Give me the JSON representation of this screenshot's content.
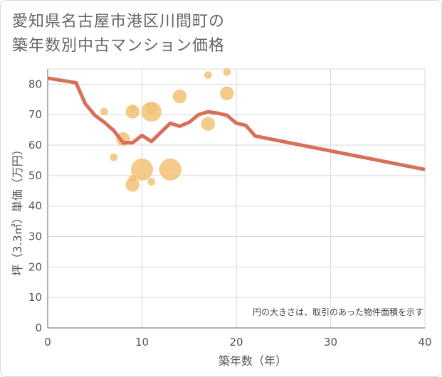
{
  "chart_data": {
    "type": "scatter",
    "title_lines": [
      "愛知県名古屋市港区川間町の",
      "築年数別中古マンション価格"
    ],
    "xlabel": "築年数（年）",
    "ylabel": "坪（3.3㎡）単価（万円）",
    "xlim": [
      0,
      40
    ],
    "ylim": [
      0,
      85
    ],
    "xticks": [
      0,
      10,
      20,
      30,
      40
    ],
    "yticks": [
      0,
      10,
      20,
      30,
      40,
      50,
      60,
      70,
      80
    ],
    "grid": true,
    "annotation": "円の大きさは、取引のあった物件面積を示す",
    "colors": {
      "bubble": "#f2c275",
      "trend": "#d67058",
      "grid": "#d9d9d9",
      "axis": "#666666"
    },
    "bubbles": [
      {
        "x": 6,
        "y": 71,
        "size": 2
      },
      {
        "x": 7,
        "y": 56,
        "size": 2
      },
      {
        "x": 8,
        "y": 62,
        "size": 5
      },
      {
        "x": 9,
        "y": 71,
        "size": 5
      },
      {
        "x": 9,
        "y": 72,
        "size": 2
      },
      {
        "x": 9,
        "y": 47,
        "size": 5
      },
      {
        "x": 9,
        "y": 49,
        "size": 2
      },
      {
        "x": 10,
        "y": 52,
        "size": 9
      },
      {
        "x": 11,
        "y": 71,
        "size": 8
      },
      {
        "x": 11,
        "y": 72,
        "size": 4
      },
      {
        "x": 11,
        "y": 48,
        "size": 2
      },
      {
        "x": 13,
        "y": 52,
        "size": 9
      },
      {
        "x": 14,
        "y": 76,
        "size": 5
      },
      {
        "x": 17,
        "y": 67,
        "size": 5
      },
      {
        "x": 17,
        "y": 83,
        "size": 2
      },
      {
        "x": 19,
        "y": 77,
        "size": 5
      },
      {
        "x": 19,
        "y": 84,
        "size": 2
      }
    ],
    "trend": {
      "x": [
        0,
        3,
        4,
        5,
        6,
        7,
        8,
        9,
        10,
        11,
        12,
        13,
        14,
        15,
        16,
        17,
        18,
        19,
        20,
        21,
        22,
        40
      ],
      "y": [
        82,
        80.5,
        73.5,
        69.8,
        67.5,
        64.8,
        60.8,
        60.8,
        63.2,
        61.2,
        64.2,
        67.2,
        66.2,
        67.5,
        70,
        71,
        70.5,
        69.8,
        67.2,
        66.5,
        63,
        52
      ]
    }
  }
}
